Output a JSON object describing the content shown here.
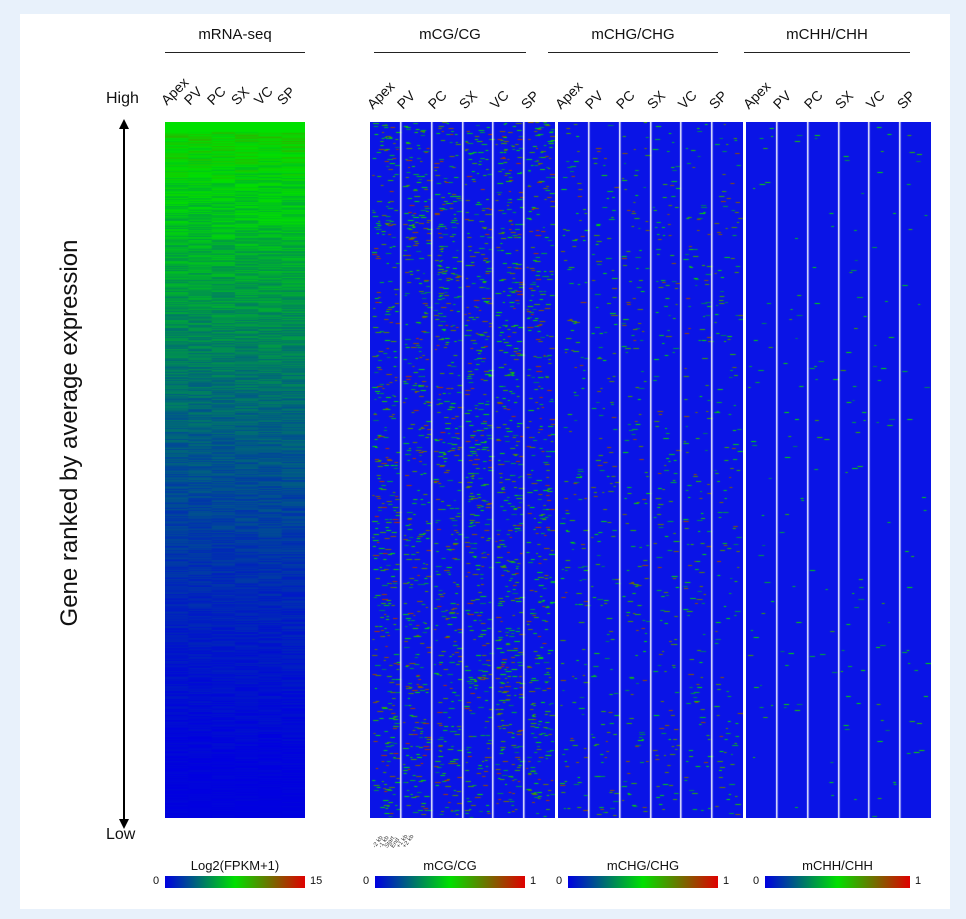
{
  "chart_data": {
    "type": "heatmap",
    "y_axis": {
      "label": "Gene ranked by average expression",
      "top_label": "High",
      "bottom_label": "Low"
    },
    "tissues": [
      "Apex",
      "PV",
      "PC",
      "SX",
      "VC",
      "SP"
    ],
    "panels": [
      {
        "title": "mRNA-seq",
        "kind": "expression"
      },
      {
        "title": "mCG/CG",
        "kind": "methylation"
      },
      {
        "title": "mCHG/CHG",
        "kind": "methylation"
      },
      {
        "title": "mCHH/CHH",
        "kind": "methylation"
      }
    ],
    "gene_region_ticks": [
      "-2 kb",
      "-1 kb",
      "Start",
      "End",
      "+1 kb",
      "+2 kb"
    ],
    "colorbars": [
      {
        "title": "Log2(FPKM+1)",
        "min": "0",
        "max": "15",
        "colors": [
          "#0000e0",
          "#00e000",
          "#e00000"
        ]
      },
      {
        "title": "mCG/CG",
        "min": "0",
        "max": "1",
        "colors": [
          "#0000e0",
          "#00e000",
          "#e00000"
        ]
      },
      {
        "title": "mCHG/CHG",
        "min": "0",
        "max": "1",
        "colors": [
          "#0000e0",
          "#00e000",
          "#e00000"
        ]
      },
      {
        "title": "mCHH/CHH",
        "min": "0",
        "max": "1",
        "colors": [
          "#0000e0",
          "#00e000",
          "#e00000"
        ]
      }
    ],
    "relative_density": {
      "mRNA-seq": "high at top, decreasing to low at bottom",
      "mCG/CG": "moderate, scattered green/red",
      "mCHG/CHG": "low, sparse",
      "mCHH/CHH": "very low"
    }
  }
}
